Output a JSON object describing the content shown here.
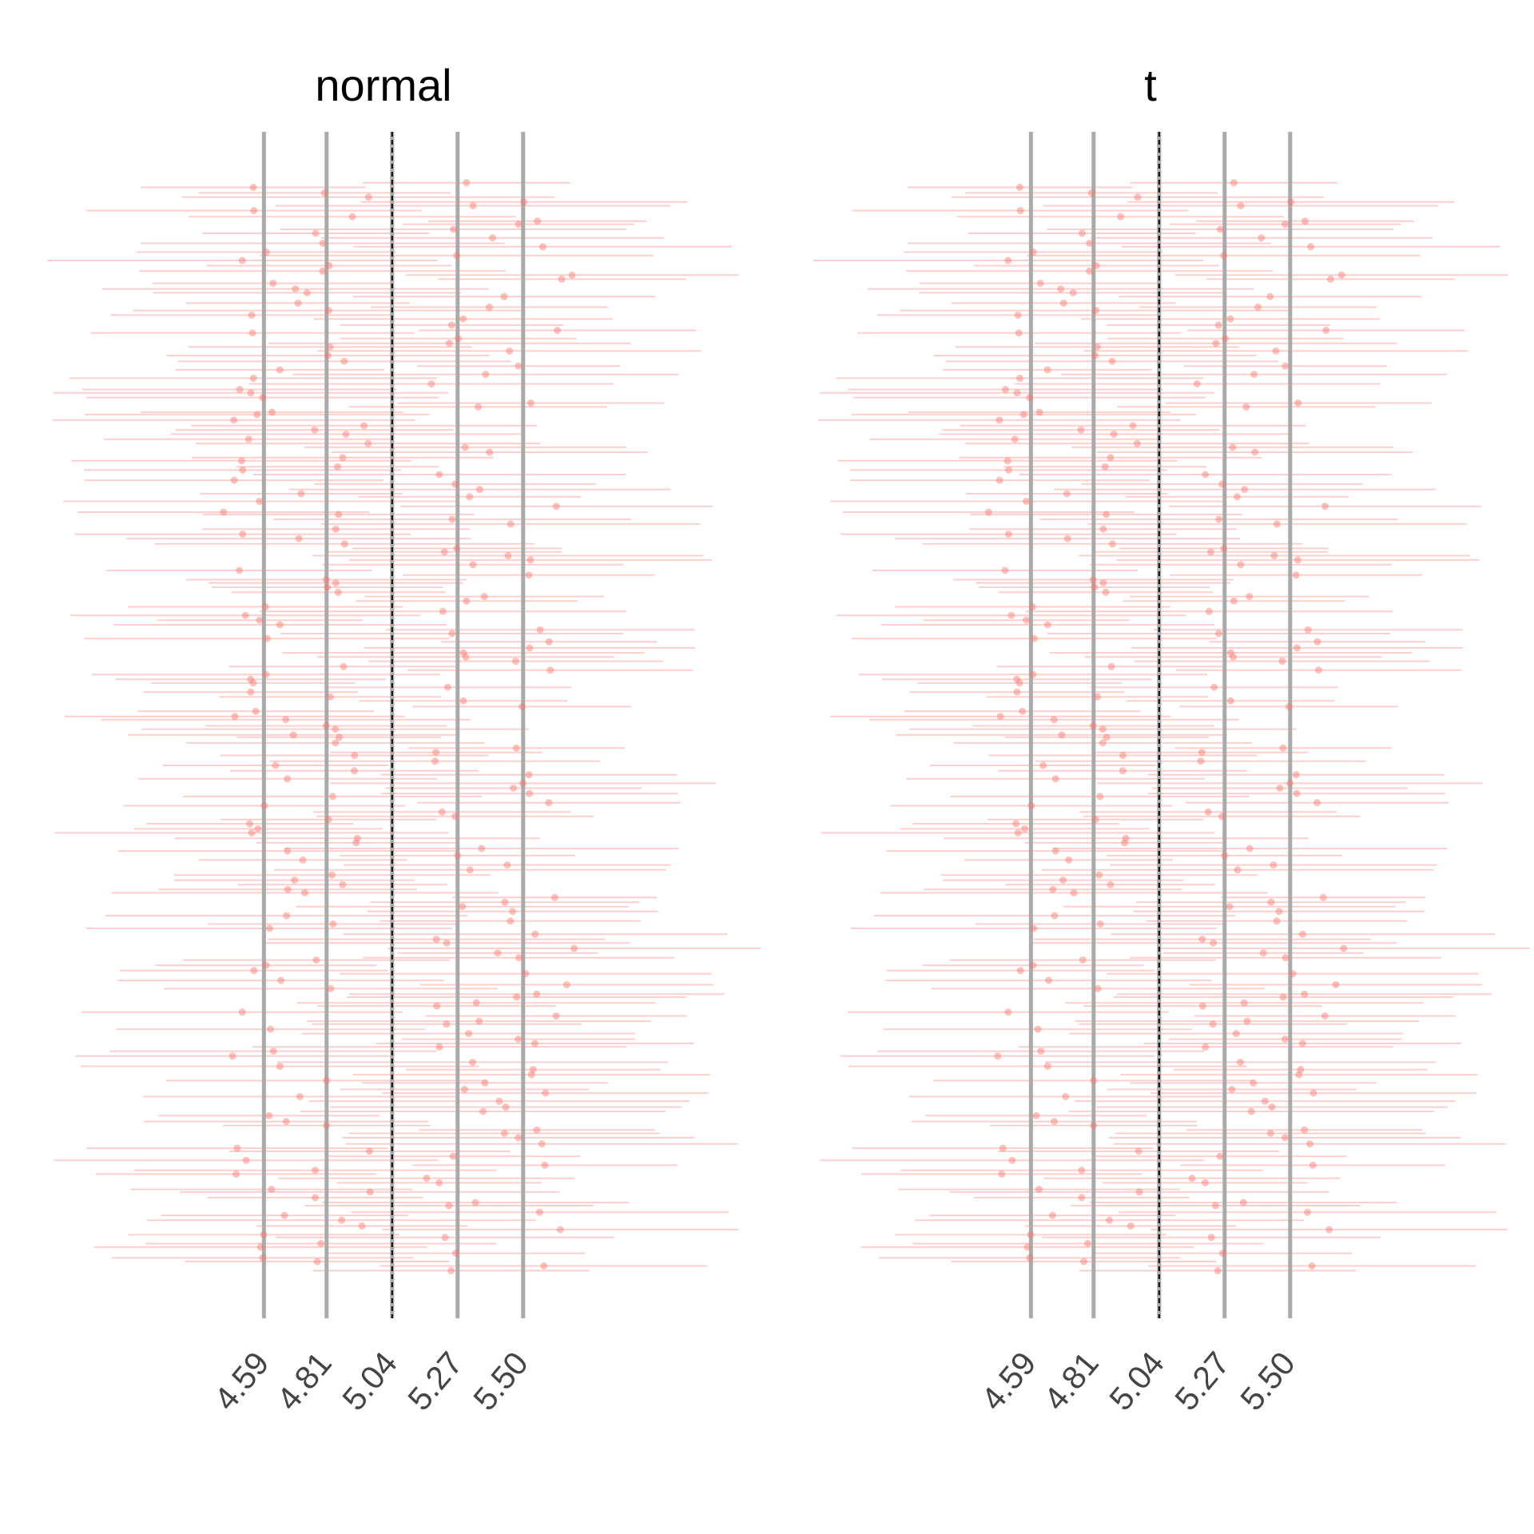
{
  "chart_data": [
    {
      "type": "scatter",
      "title": "normal",
      "subtitle": "",
      "xlabel": "",
      "ylabel": "",
      "x_ticks": [
        4.59,
        4.81,
        5.04,
        5.27,
        5.5
      ],
      "x_tick_labels": [
        "4.59",
        "4.81",
        "5.04",
        "5.27",
        "5.50"
      ],
      "reference_lines": [
        4.59,
        4.81,
        5.27,
        5.5
      ],
      "dashed_line": 5.04,
      "xlim": [
        4.0,
        6.3
      ],
      "n_points": 240,
      "cluster_centers": [
        4.59,
        4.81,
        5.27,
        5.5
      ],
      "interval_halfwidth_range": [
        0.35,
        0.7
      ],
      "point_color": "#f8766d",
      "grid": false,
      "legend": "none"
    },
    {
      "type": "scatter",
      "title": "t",
      "subtitle": "",
      "xlabel": "",
      "ylabel": "",
      "x_ticks": [
        4.59,
        4.81,
        5.04,
        5.27,
        5.5
      ],
      "x_tick_labels": [
        "4.59",
        "4.81",
        "5.04",
        "5.27",
        "5.50"
      ],
      "reference_lines": [
        4.59,
        4.81,
        5.27,
        5.5
      ],
      "dashed_line": 5.04,
      "xlim": [
        4.0,
        6.3
      ],
      "n_points": 240,
      "cluster_centers": [
        4.59,
        4.81,
        5.27,
        5.5
      ],
      "interval_halfwidth_range": [
        0.35,
        0.7
      ],
      "point_color": "#f8766d",
      "grid": false,
      "legend": "none"
    }
  ],
  "colors": {
    "reference_line": "#aaaaaa",
    "dashed_line": "#000000",
    "interval": "#f8766d",
    "tick_text": "#444444"
  }
}
